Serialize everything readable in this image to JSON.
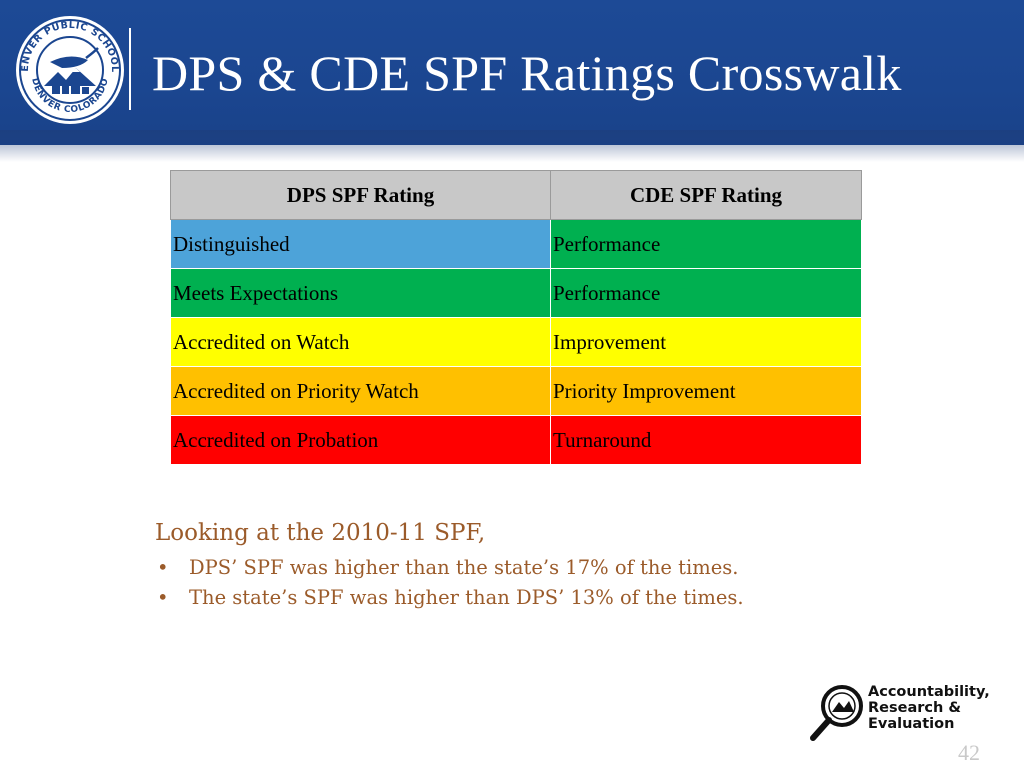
{
  "slide": {
    "title": "DPS & CDE SPF Ratings Crosswalk",
    "page_number": "42"
  },
  "seal": {
    "top_text": "DENVER PUBLIC SCHOOLS",
    "bottom_text": "DENVER COLORADO",
    "icon": "denver-public-schools-seal-icon"
  },
  "table": {
    "headers": [
      "DPS SPF Rating",
      "CDE SPF Rating"
    ],
    "rows": [
      {
        "dps": "Distinguished",
        "cde": "Performance",
        "dps_color": "#4da3d9",
        "cde_color": "#00b050"
      },
      {
        "dps": "Meets Expectations",
        "cde": "Performance",
        "dps_color": "#00b050",
        "cde_color": "#00b050"
      },
      {
        "dps": "Accredited on Watch",
        "cde": "Improvement",
        "dps_color": "#ffff00",
        "cde_color": "#ffff00"
      },
      {
        "dps": "Accredited on Priority Watch",
        "cde": "Priority Improvement",
        "dps_color": "#ffc000",
        "cde_color": "#ffc000"
      },
      {
        "dps": "Accredited on Probation",
        "cde": "Turnaround",
        "dps_color": "#ff0000",
        "cde_color": "#ff0000"
      }
    ]
  },
  "body": {
    "lead": "Looking at the 2010-11 SPF,",
    "bullet_symbol": "•",
    "bullets": [
      "DPS’ SPF was higher than the state’s 17% of the times.",
      "The state’s SPF was higher than DPS’ 13% of the times."
    ]
  },
  "footer_logo": {
    "line1": "Accountability,",
    "line2": "Research &",
    "line3": "Evaluation",
    "icon": "magnifying-glass-seal-icon"
  },
  "colors": {
    "header_blue": "#1b4690",
    "body_text": "#9b5b2a",
    "table_header": "#c8c8c8"
  }
}
